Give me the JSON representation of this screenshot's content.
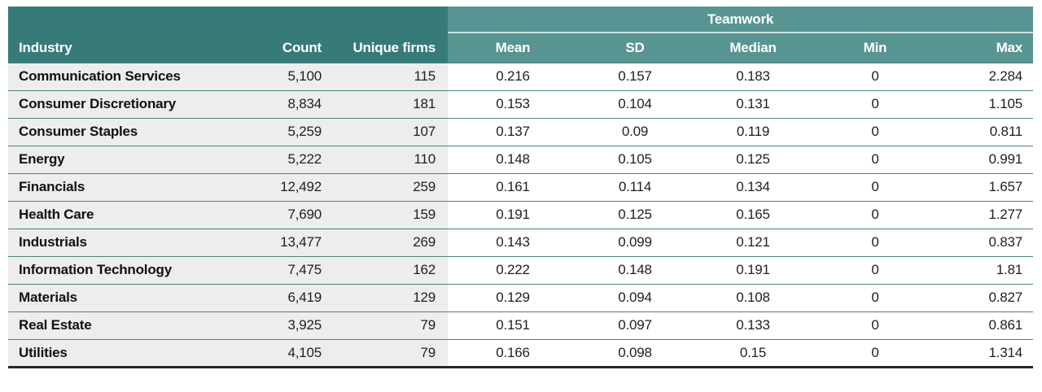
{
  "chart_data": {
    "type": "table",
    "group_header": "Teamwork",
    "group_header_spans": [
      "Mean",
      "SD",
      "Median",
      "Min",
      "Max"
    ],
    "columns": [
      "Industry",
      "Count",
      "Unique firms",
      "Mean",
      "SD",
      "Median",
      "Min",
      "Max"
    ],
    "rows": [
      [
        "Communication Services",
        "5,100",
        "115",
        "0.216",
        "0.157",
        "0.183",
        "0",
        "2.284"
      ],
      [
        "Consumer Discretionary",
        "8,834",
        "181",
        "0.153",
        "0.104",
        "0.131",
        "0",
        "1.105"
      ],
      [
        "Consumer Staples",
        "5,259",
        "107",
        "0.137",
        "0.09",
        "0.119",
        "0",
        "0.811"
      ],
      [
        "Energy",
        "5,222",
        "110",
        "0.148",
        "0.105",
        "0.125",
        "0",
        "0.991"
      ],
      [
        "Financials",
        "12,492",
        "259",
        "0.161",
        "0.114",
        "0.134",
        "0",
        "1.657"
      ],
      [
        "Health Care",
        "7,690",
        "159",
        "0.191",
        "0.125",
        "0.165",
        "0",
        "1.277"
      ],
      [
        "Industrials",
        "13,477",
        "269",
        "0.143",
        "0.099",
        "0.121",
        "0",
        "0.837"
      ],
      [
        "Information Technology",
        "7,475",
        "162",
        "0.222",
        "0.148",
        "0.191",
        "0",
        "1.81"
      ],
      [
        "Materials",
        "6,419",
        "129",
        "0.129",
        "0.094",
        "0.108",
        "0",
        "0.827"
      ],
      [
        "Real Estate",
        "3,925",
        "79",
        "0.151",
        "0.097",
        "0.133",
        "0",
        "0.861"
      ],
      [
        "Utilities",
        "4,105",
        "79",
        "0.166",
        "0.098",
        "0.15",
        "0",
        "1.314"
      ]
    ]
  },
  "colors": {
    "header_dark_teal": "#377b79",
    "header_light_teal": "#579492",
    "band_divider": "#cfe3e2",
    "row_left_bg": "#ededed",
    "row_right_bg": "#ffffff",
    "row_divider": "#4a817f",
    "bottom_border": "#1d2930",
    "header_text": "#ffffff",
    "body_text": "#1f1f1f"
  }
}
